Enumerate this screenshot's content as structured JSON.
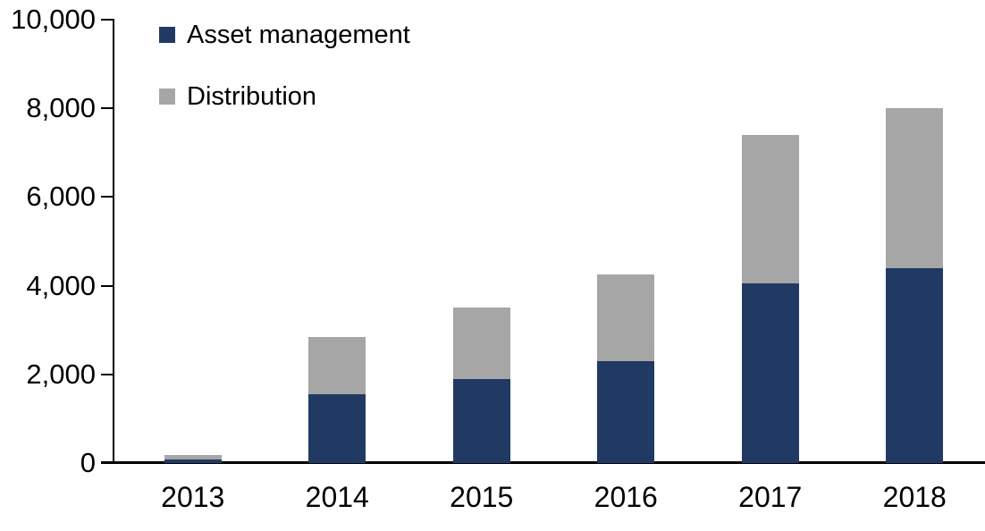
{
  "chart_data": {
    "type": "bar",
    "stacked": true,
    "title": "",
    "xlabel": "",
    "ylabel": "",
    "categories": [
      "2013",
      "2014",
      "2015",
      "2016",
      "2017",
      "2018"
    ],
    "series": [
      {
        "name": "Asset management",
        "color": "#213A63",
        "values": [
          90,
          1550,
          1900,
          2300,
          4050,
          4400
        ]
      },
      {
        "name": "Distribution",
        "color": "#A6A6A6",
        "values": [
          85,
          1300,
          1600,
          1950,
          3350,
          3600
        ]
      }
    ],
    "totals": [
      175,
      2850,
      3500,
      4250,
      7400,
      8000
    ],
    "ylim": [
      0,
      10000
    ],
    "ytick_interval": 2000,
    "ytick_labels": [
      "0",
      "2,000",
      "4,000",
      "6,000",
      "8,000",
      "10,000"
    ],
    "grid": false,
    "legend_position": "top-left-inside",
    "axis_color": "#000000",
    "background_color": "#FFFFFF"
  },
  "legend": {
    "items": [
      {
        "label": "Asset management",
        "color": "#213A63"
      },
      {
        "label": "Distribution",
        "color": "#A6A6A6"
      }
    ]
  }
}
